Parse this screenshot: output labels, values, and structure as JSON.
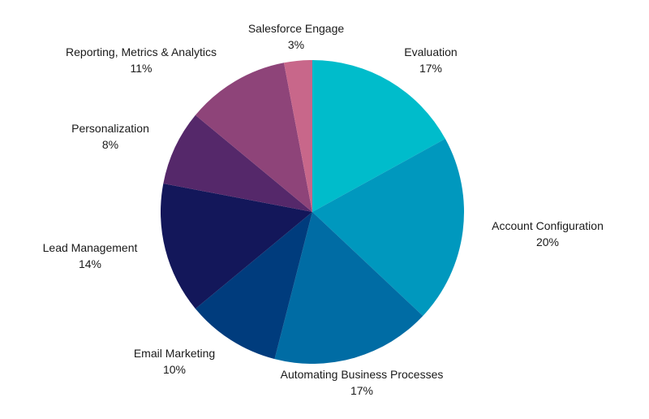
{
  "chart_data": {
    "type": "pie",
    "start_angle_deg": 0,
    "direction": "clockwise",
    "slices": [
      {
        "label": "Evaluation",
        "value": 17,
        "value_label": "17%",
        "color": "#00BCCB"
      },
      {
        "label": "Account Configuration",
        "value": 20,
        "value_label": "20%",
        "color": "#0098BE"
      },
      {
        "label": "Automating Business Processes",
        "value": 17,
        "value_label": "17%",
        "color": "#006CA4"
      },
      {
        "label": "Email Marketing",
        "value": 10,
        "value_label": "10%",
        "color": "#003C7D"
      },
      {
        "label": "Lead Management",
        "value": 14,
        "value_label": "14%",
        "color": "#13175A"
      },
      {
        "label": "Personalization",
        "value": 8,
        "value_label": "8%",
        "color": "#55286A"
      },
      {
        "label": "Reporting, Metrics & Analytics",
        "value": 11,
        "value_label": "11%",
        "color": "#8E4479"
      },
      {
        "label": "Salesforce Engage",
        "value": 3,
        "value_label": "3%",
        "color": "#C8678A"
      }
    ]
  }
}
